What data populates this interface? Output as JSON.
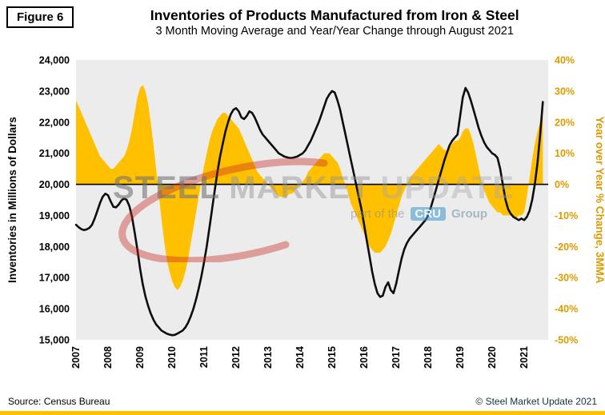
{
  "figure_label": "Figure 6",
  "title": "Inventories of Products Manufactured from Iron & Steel",
  "subtitle": "3 Month Moving Average and Year/Year Change through August 2021",
  "footer": {
    "source": "Source: Census Bureau",
    "copyright": "© Steel Market Update 2021"
  },
  "watermark": {
    "word1": "STEEL",
    "word2": "MARKET",
    "word3": "UPDATE",
    "part_of": "part of the",
    "cru": "CRU",
    "group": "Group"
  },
  "chart_data": {
    "type": "line",
    "title": "Inventories of Products Manufactured from Iron & Steel",
    "subtitle": "3 Month Moving Average and Year/Year Change through August 2021",
    "frequency": "monthly",
    "x_start": "2007-01",
    "x_end": "2021-08",
    "x_tick_labels": [
      "2007",
      "2008",
      "2009",
      "2010",
      "2011",
      "2012",
      "2013",
      "2014",
      "2015",
      "2016",
      "2017",
      "2018",
      "2019",
      "2020",
      "2021"
    ],
    "left_axis": {
      "label": "Inventories in Millions of Dollars",
      "min": 15000,
      "max": 24000,
      "ticks": [
        "24,000",
        "23,000",
        "22,000",
        "21,000",
        "20,000",
        "19,000",
        "18,000",
        "17,000",
        "16,000",
        "15,000"
      ],
      "tick_values": [
        24000,
        23000,
        22000,
        21000,
        20000,
        19000,
        18000,
        17000,
        16000,
        15000
      ]
    },
    "right_axis": {
      "label": "Year over Year % Change, 3MMA",
      "min": -50,
      "max": 40,
      "ticks": [
        "40%",
        "30%",
        "20%",
        "10%",
        "0%",
        "-10%",
        "-20%",
        "-30%",
        "-40%",
        "-50%"
      ],
      "tick_values": [
        40,
        30,
        20,
        10,
        0,
        -10,
        -20,
        -30,
        -40,
        -50
      ]
    },
    "legend": "none",
    "grid": "off",
    "colors": {
      "plot_bg": "#ECECEC",
      "area": "#FFC000",
      "line": "#0D0D0D",
      "right_axis_text": "#DD9A00"
    },
    "series": [
      {
        "name": "Inventories in Millions of Dollars (3MMA)",
        "kind": "line",
        "axis": "left",
        "color": "#0D0D0D",
        "values": [
          18700,
          18620,
          18560,
          18530,
          18550,
          18600,
          18700,
          18900,
          19150,
          19400,
          19600,
          19700,
          19650,
          19450,
          19280,
          19260,
          19350,
          19480,
          19550,
          19500,
          19300,
          18950,
          18450,
          17900,
          17300,
          16800,
          16400,
          16100,
          15850,
          15650,
          15500,
          15400,
          15300,
          15250,
          15200,
          15170,
          15150,
          15160,
          15200,
          15250,
          15300,
          15400,
          15550,
          15750,
          16000,
          16300,
          16650,
          17050,
          17500,
          18000,
          18600,
          19200,
          19800,
          20400,
          20900,
          21300,
          21700,
          22000,
          22250,
          22400,
          22450,
          22350,
          22150,
          22100,
          22200,
          22350,
          22300,
          22150,
          21950,
          21750,
          21600,
          21500,
          21400,
          21300,
          21200,
          21100,
          21000,
          20950,
          20900,
          20870,
          20850,
          20850,
          20870,
          20900,
          20950,
          21000,
          21100,
          21250,
          21400,
          21600,
          21800,
          22000,
          22250,
          22500,
          22750,
          22900,
          23000,
          22950,
          22700,
          22400,
          22000,
          21600,
          21200,
          20800,
          20400,
          20000,
          19600,
          19200,
          18700,
          18200,
          17700,
          17200,
          16800,
          16500,
          16380,
          16420,
          16700,
          16850,
          16600,
          16500,
          16800,
          17200,
          17600,
          17900,
          18100,
          18250,
          18350,
          18450,
          18550,
          18650,
          18750,
          18850,
          19000,
          19250,
          19550,
          19850,
          20150,
          20450,
          20750,
          21000,
          21250,
          21400,
          21500,
          21600,
          22200,
          22800,
          23100,
          22950,
          22700,
          22400,
          22100,
          21800,
          21550,
          21350,
          21200,
          21100,
          21000,
          20950,
          20850,
          20500,
          20000,
          19500,
          19200,
          19050,
          18950,
          18900,
          18850,
          18900,
          18850,
          18950,
          19150,
          19500,
          20000,
          20700,
          21600,
          22650
        ]
      },
      {
        "name": "Year over Year % Change, 3MMA",
        "kind": "area",
        "axis": "right",
        "color": "#FFC000",
        "values": [
          27,
          25,
          23,
          21,
          19,
          17,
          15,
          13,
          11,
          9,
          8,
          7,
          6,
          5,
          5,
          6,
          7,
          8,
          9,
          11,
          14,
          18,
          23,
          28,
          31,
          32,
          30,
          26,
          20,
          13,
          5,
          -3,
          -11,
          -18,
          -24,
          -28,
          -31,
          -33,
          -34,
          -33,
          -31,
          -28,
          -24,
          -19,
          -14,
          -9,
          -4,
          1,
          6,
          10,
          14,
          17,
          19,
          21,
          22,
          23,
          23,
          22,
          21,
          20,
          19,
          18,
          16,
          14,
          12,
          10,
          8,
          6,
          4,
          3,
          2,
          1,
          0,
          -1,
          -2,
          -3,
          -4,
          -4,
          -4,
          -4,
          -3,
          -3,
          -2,
          -1,
          0,
          1,
          2,
          4,
          5,
          6,
          7,
          8,
          9,
          10,
          10,
          10,
          9,
          8,
          7,
          5,
          2,
          0,
          -3,
          -6,
          -8,
          -10,
          -12,
          -14,
          -16,
          -18,
          -20,
          -21,
          -22,
          -22,
          -22,
          -21,
          -20,
          -18,
          -16,
          -13,
          -10,
          -7,
          -4,
          -2,
          0,
          2,
          3,
          4,
          5,
          6,
          7,
          8,
          9,
          10,
          11,
          12,
          13,
          12,
          11,
          11,
          12,
          13,
          14,
          14,
          15,
          17,
          18,
          18,
          16,
          13,
          9,
          5,
          1,
          -2,
          -4,
          -6,
          -7,
          -8,
          -9,
          -9,
          -10,
          -10,
          -10,
          -10,
          -11,
          -11,
          -10,
          -10,
          -9,
          -4,
          2,
          8,
          13,
          17,
          20,
          22
        ]
      }
    ]
  }
}
